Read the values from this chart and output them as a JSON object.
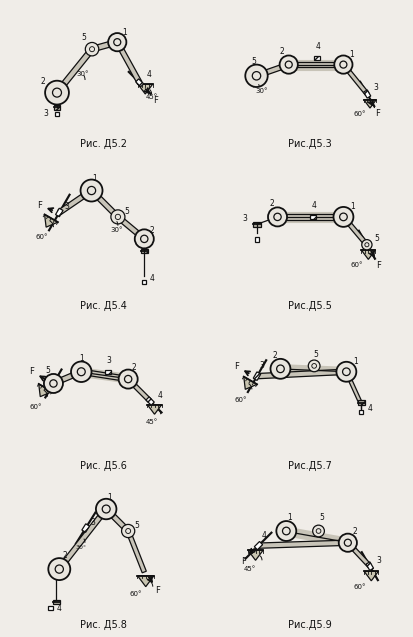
{
  "background": "#f0ede8",
  "font_color": "#111111",
  "line_color": "#111111",
  "label_fontsize": 7,
  "fig_labels": [
    "Рис. Д5.2",
    "Рис.Д5.3",
    "Рис. Д5.4",
    "Рис.Д5.5",
    "Рис. Д5.6",
    "Рис.Д5.7",
    "Рис. Д5.8",
    "Рис.Д5.9"
  ]
}
